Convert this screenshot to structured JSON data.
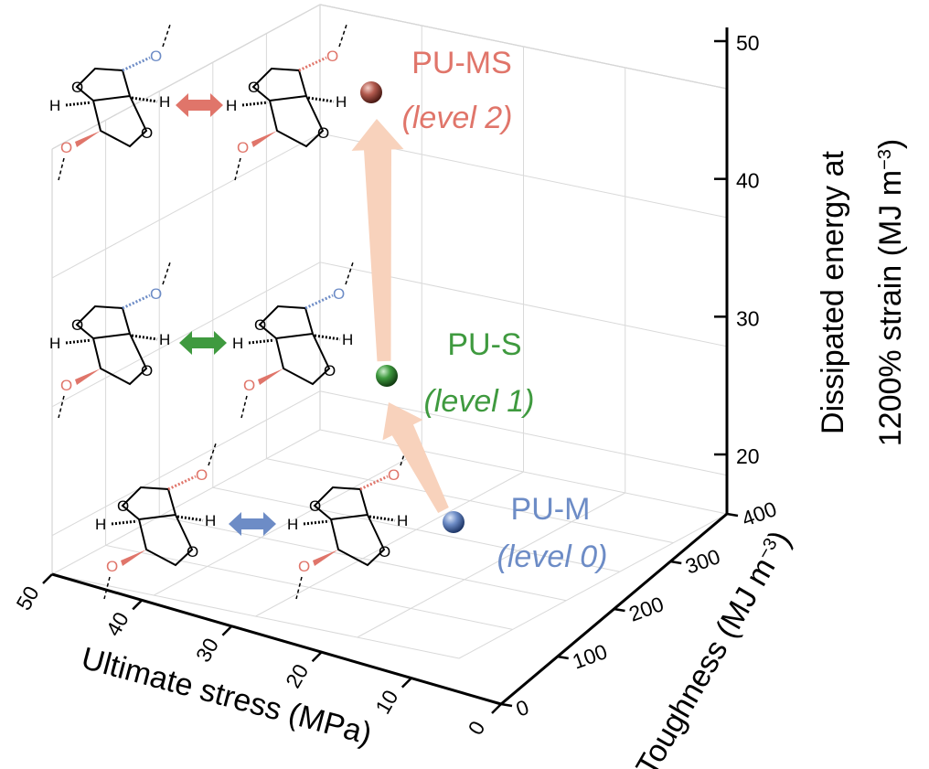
{
  "chart_data": {
    "type": "scatter3d",
    "x_axis": {
      "label": "Ultimate stress (MPa)",
      "range": [
        0,
        50
      ],
      "ticks": [
        0,
        10,
        20,
        30,
        40,
        50
      ]
    },
    "y_axis": {
      "label_prefix": "Toughness (MJ m",
      "label_sup": "−3",
      "label_suffix": ")",
      "range": [
        0,
        400
      ],
      "ticks": [
        0,
        100,
        200,
        300,
        400
      ]
    },
    "z_axis": {
      "label_line1": "Dissipated energy at",
      "label_line2_prefix": "1200% strain (MJ m",
      "label_sup": "−3",
      "label_line2_suffix": ")",
      "range": [
        17,
        50
      ],
      "ticks": [
        20,
        30,
        40,
        50
      ]
    },
    "points": [
      {
        "name": "PU-M",
        "level": "(level 0)",
        "x": 12,
        "y": 60,
        "z": 20,
        "color": "#6d8cc6"
      },
      {
        "name": "PU-S",
        "level": "(level 1)",
        "x": 20,
        "y": 110,
        "z": 27.5,
        "color": "#3f9a3f"
      },
      {
        "name": "PU-MS",
        "level": "(level 2)",
        "x": 22,
        "y": 140,
        "z": 46,
        "color": "#e0756a"
      }
    ],
    "arrow_color": "#f8d2bc",
    "molecule_labels": {
      "oxygen": "O",
      "hydrogen": "H"
    },
    "grid": true
  }
}
